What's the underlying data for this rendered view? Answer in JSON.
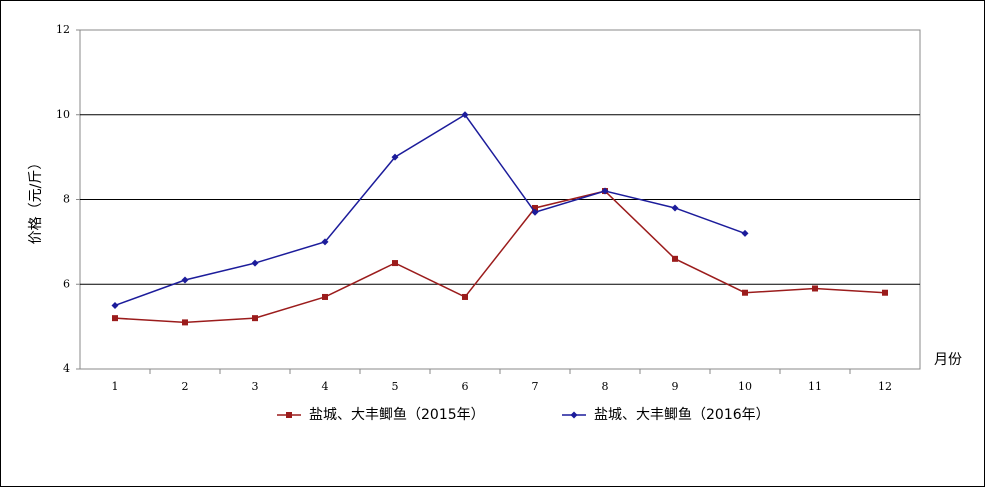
{
  "chart_data": {
    "type": "line",
    "categories": [
      "1",
      "2",
      "3",
      "4",
      "5",
      "6",
      "7",
      "8",
      "9",
      "10",
      "11",
      "12"
    ],
    "series": [
      {
        "name": "盐城、大丰鲫鱼（2015年）",
        "color": "#9b1c1c",
        "marker": "square",
        "values": [
          5.2,
          5.1,
          5.2,
          5.7,
          6.5,
          5.7,
          7.8,
          8.2,
          6.6,
          5.8,
          5.9,
          5.8
        ]
      },
      {
        "name": "盐城、大丰鲫鱼（2016年）",
        "color": "#1c1c9b",
        "marker": "diamond",
        "values": [
          5.5,
          6.1,
          6.5,
          7.0,
          9.0,
          10.0,
          7.7,
          8.2,
          7.8,
          7.2,
          null,
          null
        ]
      }
    ],
    "ylabel": "价格（元/斤）",
    "xlabel": "月份",
    "ylim": [
      4,
      12
    ],
    "yticks": [
      4,
      6,
      8,
      10,
      12
    ],
    "grid": true,
    "legend": "bottom"
  }
}
